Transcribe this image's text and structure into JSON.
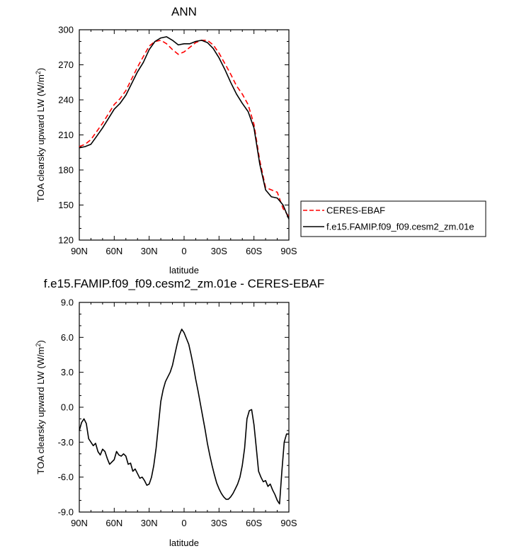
{
  "page": {
    "background": "#ffffff"
  },
  "chart_data": [
    {
      "type": "line",
      "title": "ANN",
      "xlabel": "latitude",
      "ylabel": "TOA clearsky upward LW (W/m",
      "ylabel_sup": "2",
      "ylabel_close": ")",
      "xlim": [
        90,
        -90
      ],
      "ylim": [
        120,
        300
      ],
      "x_ticks": [
        90,
        60,
        30,
        0,
        -30,
        -60,
        -90
      ],
      "x_tick_labels": [
        "90N",
        "60N",
        "30N",
        "0",
        "30S",
        "60S",
        "90S"
      ],
      "y_ticks": [
        120,
        150,
        180,
        210,
        240,
        270,
        300
      ],
      "y_tick_labels": [
        "120",
        "150",
        "180",
        "210",
        "240",
        "270",
        "300"
      ],
      "grid": false,
      "legend_position": "right-outside",
      "series": [
        {
          "name": "CERES-EBAF",
          "color": "#ff0000",
          "dash": "dashed",
          "x": [
            90,
            85,
            80,
            75,
            70,
            65,
            60,
            55,
            50,
            45,
            40,
            35,
            30,
            25,
            20,
            15,
            10,
            5,
            0,
            -5,
            -10,
            -15,
            -20,
            -25,
            -30,
            -35,
            -40,
            -45,
            -50,
            -55,
            -60,
            -65,
            -70,
            -75,
            -80,
            -85,
            -90
          ],
          "y": [
            200,
            202,
            206,
            213,
            220,
            228,
            236,
            241,
            248,
            258,
            268,
            277,
            286,
            290,
            291,
            288,
            283,
            279,
            281,
            285,
            289,
            291,
            291,
            287,
            280,
            271,
            262,
            252,
            245,
            236,
            219,
            188,
            165,
            163,
            161,
            147,
            140
          ]
        },
        {
          "name": "f.e15.FAMIP.f09_f09.cesm2_zm.01e",
          "color": "#000000",
          "dash": "solid",
          "x": [
            90,
            85,
            80,
            75,
            70,
            65,
            60,
            55,
            50,
            45,
            40,
            35,
            30,
            25,
            20,
            15,
            10,
            5,
            0,
            -5,
            -10,
            -15,
            -20,
            -25,
            -30,
            -35,
            -40,
            -45,
            -50,
            -55,
            -60,
            -65,
            -70,
            -75,
            -80,
            -85,
            -90
          ],
          "y": [
            199,
            200,
            202,
            209,
            216,
            224,
            232,
            237,
            244,
            254,
            264,
            272,
            283,
            290,
            293,
            294,
            291,
            287,
            288,
            288,
            290,
            291,
            289,
            284,
            276,
            266,
            255,
            245,
            237,
            230,
            216,
            185,
            163,
            157,
            156,
            150,
            138
          ]
        }
      ]
    },
    {
      "type": "line",
      "title": "f.e15.FAMIP.f09_f09.cesm2_zm.01e - CERES-EBAF",
      "xlabel": "latitude",
      "ylabel": "TOA clearsky upward LW (W/m",
      "ylabel_sup": "2",
      "ylabel_close": ")",
      "xlim": [
        90,
        -90
      ],
      "ylim": [
        -9,
        9
      ],
      "x_ticks": [
        90,
        60,
        30,
        0,
        -30,
        -60,
        -90
      ],
      "x_tick_labels": [
        "90N",
        "60N",
        "30N",
        "0",
        "30S",
        "60S",
        "90S"
      ],
      "y_ticks": [
        -9,
        -6,
        -3,
        0,
        3,
        6,
        9
      ],
      "y_tick_labels": [
        "-9.0",
        "-6.0",
        "-3.0",
        "0.0",
        "3.0",
        "6.0",
        "9.0"
      ],
      "grid": false,
      "series": [
        {
          "color": "#000000",
          "dash": "solid",
          "x": [
            90,
            88,
            86,
            84,
            82,
            80,
            78,
            76,
            74,
            72,
            70,
            68,
            66,
            64,
            62,
            60,
            58,
            56,
            54,
            52,
            50,
            48,
            46,
            44,
            42,
            40,
            38,
            36,
            34,
            32,
            30,
            28,
            26,
            24,
            22,
            20,
            18,
            16,
            14,
            12,
            10,
            8,
            6,
            4,
            2,
            0,
            -2,
            -4,
            -6,
            -8,
            -10,
            -12,
            -14,
            -16,
            -18,
            -20,
            -22,
            -24,
            -26,
            -28,
            -30,
            -32,
            -34,
            -36,
            -38,
            -40,
            -42,
            -44,
            -46,
            -48,
            -50,
            -52,
            -54,
            -56,
            -58,
            -60,
            -62,
            -64,
            -66,
            -68,
            -70,
            -72,
            -74,
            -76,
            -78,
            -80,
            -82,
            -84,
            -86,
            -88,
            -90
          ],
          "y": [
            -2.0,
            -1.3,
            -1.0,
            -1.4,
            -2.7,
            -3.0,
            -3.3,
            -3.1,
            -3.8,
            -4.1,
            -3.6,
            -3.8,
            -4.4,
            -4.9,
            -4.7,
            -4.5,
            -3.8,
            -4.1,
            -4.2,
            -4.0,
            -4.2,
            -4.9,
            -4.8,
            -5.5,
            -5.3,
            -5.7,
            -6.1,
            -6.0,
            -6.3,
            -6.7,
            -6.6,
            -6.0,
            -5.0,
            -3.5,
            -1.5,
            0.5,
            1.5,
            2.2,
            2.6,
            3.0,
            3.6,
            4.5,
            5.4,
            6.2,
            6.7,
            6.4,
            5.9,
            5.4,
            4.5,
            3.5,
            2.4,
            1.4,
            0.3,
            -0.8,
            -1.9,
            -3.1,
            -4.1,
            -5.0,
            -5.8,
            -6.5,
            -7.0,
            -7.4,
            -7.7,
            -7.9,
            -7.9,
            -7.7,
            -7.4,
            -7.0,
            -6.6,
            -6.0,
            -5.0,
            -3.5,
            -1.0,
            -0.3,
            -0.2,
            -1.5,
            -3.5,
            -5.5,
            -6.0,
            -6.4,
            -6.3,
            -6.8,
            -6.6,
            -7.1,
            -7.5,
            -8.0,
            -8.3,
            -5.5,
            -3.0,
            -2.3,
            -2.3
          ]
        }
      ]
    }
  ]
}
